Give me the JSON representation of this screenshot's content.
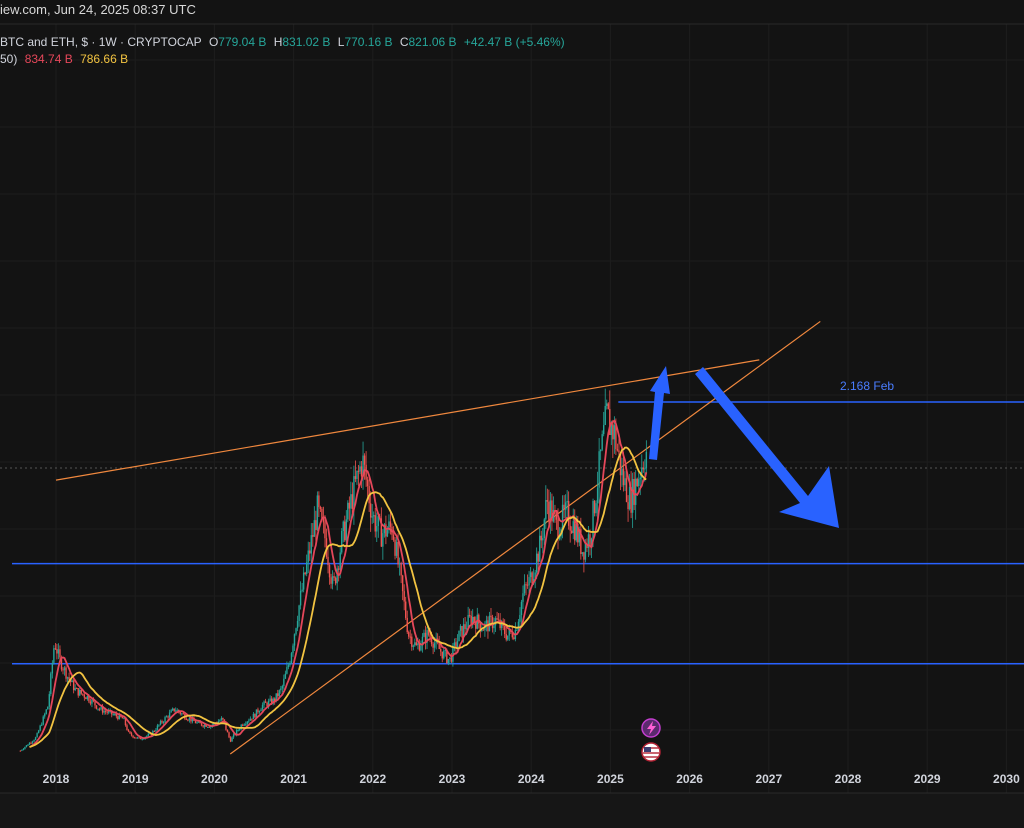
{
  "header": {
    "source_line": "iew.com, Jun 24, 2025 08:37 UTC",
    "symbol": "BTC and ETH, $ · 1W · CRYPTOCAP",
    "open_label": "O",
    "open_value": "779.04 B",
    "high_label": "H",
    "high_value": "831.02 B",
    "low_label": "L",
    "low_value": "770.16 B",
    "close_label": "C",
    "close_value": "821.06 B",
    "change": "+42.47 B (+5.46%)",
    "ma_label": "50)",
    "ma1_value": "834.74 B",
    "ma2_value": "786.66 B"
  },
  "annotation": {
    "label": "2.168 Feb"
  },
  "colors": {
    "background": "#131313",
    "up_candle": "#26a69a",
    "down_candle": "#ef5350",
    "ma_fast": "#e5475a",
    "ma_slow": "#f2c341",
    "trendline": "#f0883e",
    "level_line": "#2962ff",
    "arrow": "#2962ff"
  },
  "icons": [
    "lightning-icon",
    "us-flag-icon"
  ],
  "chart_data": {
    "type": "candlestick",
    "timeframe": "1W",
    "x_axis": {
      "ticks": [
        "2018",
        "2019",
        "2020",
        "2021",
        "2022",
        "2023",
        "2024",
        "2025",
        "2026",
        "2027",
        "2028",
        "2029",
        "2030"
      ]
    },
    "price_path": [
      {
        "t": 2017.55,
        "v": 0.08
      },
      {
        "t": 2017.75,
        "v": 0.16
      },
      {
        "t": 2017.9,
        "v": 0.35
      },
      {
        "t": 2017.98,
        "v": 0.73
      },
      {
        "t": 2018.05,
        "v": 0.62
      },
      {
        "t": 2018.15,
        "v": 0.52
      },
      {
        "t": 2018.25,
        "v": 0.44
      },
      {
        "t": 2018.4,
        "v": 0.4
      },
      {
        "t": 2018.55,
        "v": 0.33
      },
      {
        "t": 2018.7,
        "v": 0.3
      },
      {
        "t": 2018.85,
        "v": 0.27
      },
      {
        "t": 2018.92,
        "v": 0.18
      },
      {
        "t": 2019.05,
        "v": 0.15
      },
      {
        "t": 2019.2,
        "v": 0.18
      },
      {
        "t": 2019.35,
        "v": 0.26
      },
      {
        "t": 2019.5,
        "v": 0.33
      },
      {
        "t": 2019.65,
        "v": 0.28
      },
      {
        "t": 2019.8,
        "v": 0.24
      },
      {
        "t": 2019.95,
        "v": 0.23
      },
      {
        "t": 2020.1,
        "v": 0.27
      },
      {
        "t": 2020.2,
        "v": 0.14
      },
      {
        "t": 2020.35,
        "v": 0.24
      },
      {
        "t": 2020.5,
        "v": 0.29
      },
      {
        "t": 2020.6,
        "v": 0.35
      },
      {
        "t": 2020.75,
        "v": 0.38
      },
      {
        "t": 2020.85,
        "v": 0.45
      },
      {
        "t": 2020.95,
        "v": 0.62
      },
      {
        "t": 2021.05,
        "v": 0.9
      },
      {
        "t": 2021.15,
        "v": 1.15
      },
      {
        "t": 2021.3,
        "v": 1.52
      },
      {
        "t": 2021.4,
        "v": 1.35
      },
      {
        "t": 2021.5,
        "v": 1.05
      },
      {
        "t": 2021.6,
        "v": 1.32
      },
      {
        "t": 2021.75,
        "v": 1.62
      },
      {
        "t": 2021.87,
        "v": 1.82
      },
      {
        "t": 2022.0,
        "v": 1.48
      },
      {
        "t": 2022.1,
        "v": 1.38
      },
      {
        "t": 2022.25,
        "v": 1.42
      },
      {
        "t": 2022.35,
        "v": 1.1
      },
      {
        "t": 2022.45,
        "v": 0.78
      },
      {
        "t": 2022.55,
        "v": 0.7
      },
      {
        "t": 2022.7,
        "v": 0.78
      },
      {
        "t": 2022.85,
        "v": 0.68
      },
      {
        "t": 2022.97,
        "v": 0.62
      },
      {
        "t": 2023.1,
        "v": 0.78
      },
      {
        "t": 2023.25,
        "v": 0.88
      },
      {
        "t": 2023.4,
        "v": 0.82
      },
      {
        "t": 2023.55,
        "v": 0.86
      },
      {
        "t": 2023.7,
        "v": 0.77
      },
      {
        "t": 2023.8,
        "v": 0.8
      },
      {
        "t": 2023.9,
        "v": 1.02
      },
      {
        "t": 2024.0,
        "v": 1.12
      },
      {
        "t": 2024.12,
        "v": 1.32
      },
      {
        "t": 2024.2,
        "v": 1.58
      },
      {
        "t": 2024.32,
        "v": 1.42
      },
      {
        "t": 2024.45,
        "v": 1.5
      },
      {
        "t": 2024.55,
        "v": 1.42
      },
      {
        "t": 2024.65,
        "v": 1.28
      },
      {
        "t": 2024.75,
        "v": 1.38
      },
      {
        "t": 2024.88,
        "v": 1.85
      },
      {
        "t": 2024.95,
        "v": 2.08
      },
      {
        "t": 2025.05,
        "v": 1.98
      },
      {
        "t": 2025.15,
        "v": 1.72
      },
      {
        "t": 2025.25,
        "v": 1.58
      },
      {
        "t": 2025.35,
        "v": 1.72
      },
      {
        "t": 2025.45,
        "v": 1.88
      },
      {
        "t": 2025.47,
        "v": 1.82
      }
    ],
    "trend_lines": [
      {
        "from": [
          2018.0,
          1.7
        ],
        "to": [
          2026.88,
          2.42
        ]
      },
      {
        "from": [
          2020.2,
          0.06
        ],
        "to": [
          2027.65,
          2.65
        ]
      }
    ],
    "levels": [
      {
        "v": 2.168,
        "from": 2025.1,
        "label": "2.168 Feb"
      },
      {
        "v": 1.2
      },
      {
        "v": 0.6
      }
    ],
    "arrows": [
      "up",
      "down"
    ]
  }
}
